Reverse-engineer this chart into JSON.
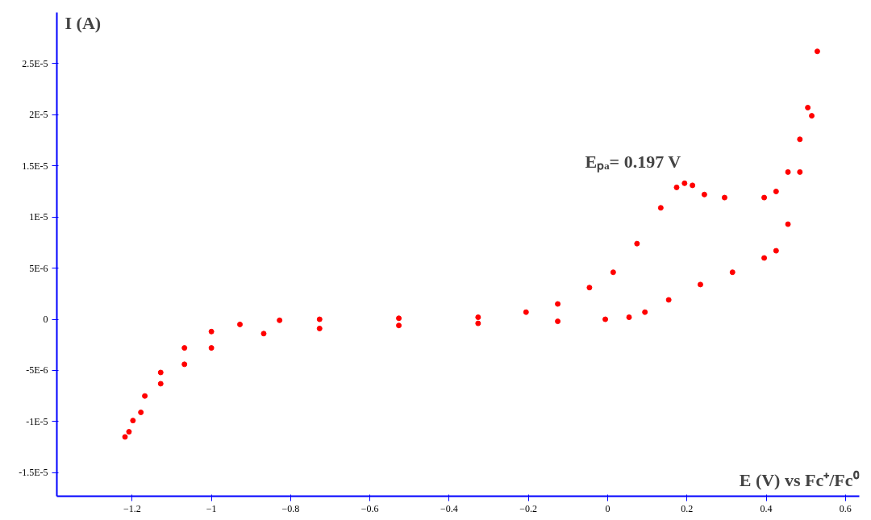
{
  "chart_data": {
    "type": "scatter",
    "xlabel": "E (V) vs Fc⁺/Fc⁰",
    "ylabel": "I (A)",
    "marker": "circle",
    "grid": false,
    "xlim": [
      -1.39,
      0.635
    ],
    "ylim": [
      -1.73e-05,
      3e-05
    ],
    "xticks": [
      -1.2,
      -1,
      -0.8,
      -0.6,
      -0.4,
      -0.2,
      0,
      0.2,
      0.4,
      0.6
    ],
    "yticks": [
      {
        "value": -1.5e-05,
        "label": "-1.5E-5"
      },
      {
        "value": -1e-05,
        "label": "-1E-5"
      },
      {
        "value": -5e-06,
        "label": "-5E-6"
      },
      {
        "value": 0,
        "label": "0"
      },
      {
        "value": 5e-06,
        "label": "5E-6"
      },
      {
        "value": 1e-05,
        "label": "1E-5"
      },
      {
        "value": 1.5e-05,
        "label": "1.5E-5"
      },
      {
        "value": 2e-05,
        "label": "2E-5"
      },
      {
        "value": 2.5e-05,
        "label": "2.5E-5"
      }
    ],
    "annotations": [
      "Eₚₐ= 0.197 V"
    ],
    "series": [
      {
        "color": "#ff0000",
        "x": [
          -1.218,
          -1.198,
          -1.168,
          -1.128,
          -1.068,
          -1.0,
          -0.928,
          -0.828,
          -0.727,
          -0.527,
          -0.327,
          -0.206,
          -0.126,
          -0.046,
          0.014,
          0.074,
          0.134,
          0.174,
          0.194,
          0.214,
          0.244,
          0.295,
          0.395,
          0.425,
          0.455,
          0.485,
          0.505,
          0.529,
          0.515,
          0.485,
          0.455,
          0.425,
          0.395,
          0.315,
          0.234,
          0.154,
          0.094,
          0.054,
          -0.006,
          -0.126,
          -0.327,
          -0.527,
          -0.727,
          -0.868,
          -1.0,
          -1.068,
          -1.128,
          -1.178,
          -1.208
        ],
        "values": [
          -1.15e-05,
          -9.9e-06,
          -7.5e-06,
          -5.2e-06,
          -2.8e-06,
          -1.2e-06,
          -5e-07,
          -1e-07,
          0,
          1e-07,
          2e-07,
          7e-07,
          1.5e-06,
          3.1e-06,
          4.6e-06,
          7.4e-06,
          1.09e-05,
          1.29e-05,
          1.33e-05,
          1.31e-05,
          1.22e-05,
          1.19e-05,
          1.19e-05,
          1.25e-05,
          1.44e-05,
          1.76e-05,
          2.07e-05,
          2.62e-05,
          1.99e-05,
          1.44e-05,
          9.3e-06,
          6.7e-06,
          6e-06,
          4.6e-06,
          3.4e-06,
          1.9e-06,
          7e-07,
          2e-07,
          0,
          -2e-07,
          -4e-07,
          -6e-07,
          -9e-07,
          -1.4e-06,
          -2.8e-06,
          -4.4e-06,
          -6.3e-06,
          -9.1e-06,
          -1.1e-05
        ]
      }
    ]
  }
}
